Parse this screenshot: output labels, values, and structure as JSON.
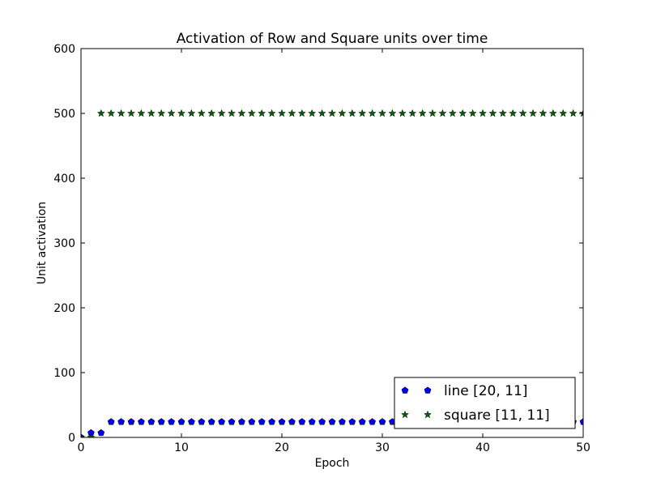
{
  "chart_data": {
    "type": "scatter",
    "title": "Activation of Row and Square units over time",
    "xlabel": "Epoch",
    "ylabel": "Unit activation",
    "xlim": [
      0,
      50
    ],
    "ylim": [
      0,
      600
    ],
    "xticks": [
      0,
      10,
      20,
      30,
      40,
      50
    ],
    "yticks": [
      0,
      100,
      200,
      300,
      400,
      500,
      600
    ],
    "grid": false,
    "legend_position": "lower-right",
    "series": [
      {
        "name": "line [20, 11]",
        "marker": "pentagon",
        "color": "#0000ff",
        "x": [
          0,
          1,
          2,
          3,
          4,
          5,
          6,
          7,
          8,
          9,
          10,
          11,
          12,
          13,
          14,
          15,
          16,
          17,
          18,
          19,
          20,
          21,
          22,
          23,
          24,
          25,
          26,
          27,
          28,
          29,
          30,
          31,
          32,
          33,
          34,
          35,
          36,
          37,
          38,
          39,
          40,
          41,
          42,
          43,
          44,
          45,
          46,
          47,
          48,
          49,
          50
        ],
        "y": [
          0,
          7,
          7,
          24,
          24,
          24,
          24,
          24,
          24,
          24,
          24,
          24,
          24,
          24,
          24,
          24,
          24,
          24,
          24,
          24,
          24,
          24,
          24,
          24,
          24,
          24,
          24,
          24,
          24,
          24,
          24,
          24,
          24,
          24,
          24,
          24,
          24,
          24,
          24,
          24,
          24,
          24,
          24,
          24,
          24,
          24,
          24,
          24,
          24,
          24,
          24
        ]
      },
      {
        "name": "square [11, 11]",
        "marker": "star",
        "color": "#006400",
        "x": [
          0,
          1,
          2,
          3,
          4,
          5,
          6,
          7,
          8,
          9,
          10,
          11,
          12,
          13,
          14,
          15,
          16,
          17,
          18,
          19,
          20,
          21,
          22,
          23,
          24,
          25,
          26,
          27,
          28,
          29,
          30,
          31,
          32,
          33,
          34,
          35,
          36,
          37,
          38,
          39,
          40,
          41,
          42,
          43,
          44,
          45,
          46,
          47,
          48,
          49,
          50
        ],
        "y": [
          0,
          0,
          500,
          500,
          500,
          500,
          500,
          500,
          500,
          500,
          500,
          500,
          500,
          500,
          500,
          500,
          500,
          500,
          500,
          500,
          500,
          500,
          500,
          500,
          500,
          500,
          500,
          500,
          500,
          500,
          500,
          500,
          500,
          500,
          500,
          500,
          500,
          500,
          500,
          500,
          500,
          500,
          500,
          500,
          500,
          500,
          500,
          500,
          500,
          500,
          500
        ]
      }
    ]
  }
}
